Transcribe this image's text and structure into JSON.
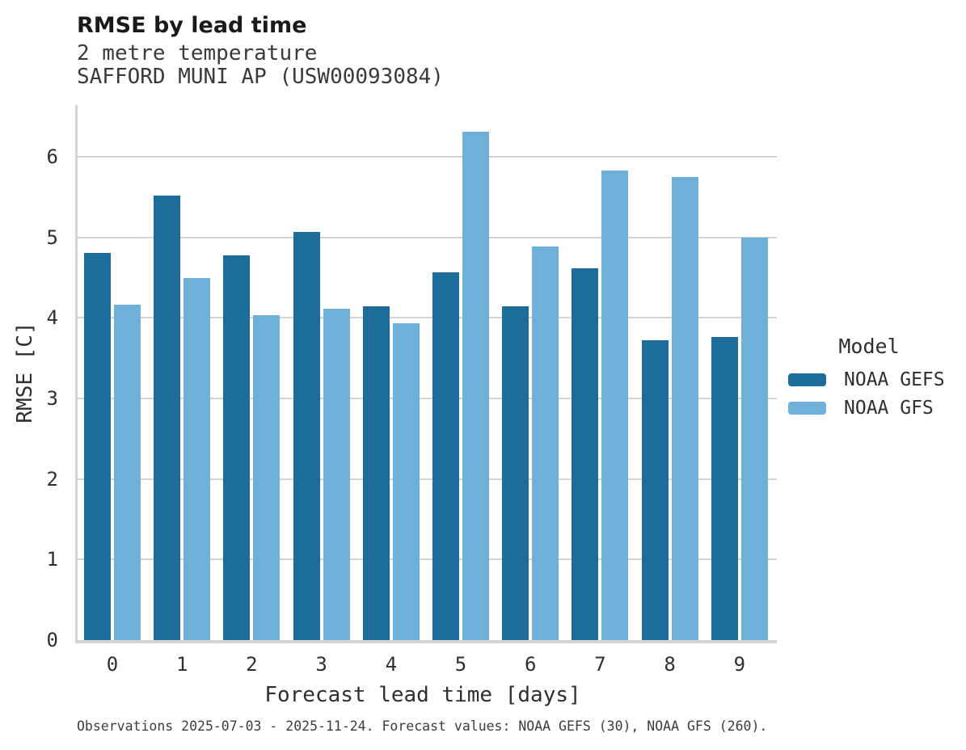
{
  "header": {
    "title": "RMSE by lead time",
    "subtitle1": "2 metre temperature",
    "subtitle2": "SAFFORD MUNI AP (USW00093084)"
  },
  "chart_data": {
    "type": "bar",
    "title": "RMSE by lead time",
    "subtitle": [
      "2 metre temperature",
      "SAFFORD MUNI AP (USW00093084)"
    ],
    "categories": [
      "0",
      "1",
      "2",
      "3",
      "4",
      "5",
      "6",
      "7",
      "8",
      "9"
    ],
    "series": [
      {
        "name": "NOAA GEFS",
        "color": "#1c6c9c",
        "values": [
          4.8,
          5.52,
          4.77,
          5.07,
          4.14,
          4.56,
          4.14,
          4.61,
          3.72,
          3.76
        ]
      },
      {
        "name": "NOAA GFS",
        "color": "#6db1d8",
        "values": [
          4.16,
          4.49,
          4.03,
          4.11,
          3.93,
          6.31,
          4.88,
          5.83,
          5.75,
          5.0
        ]
      }
    ],
    "xlabel": "Forecast lead time [days]",
    "ylabel": "RMSE [C]",
    "ylim": [
      0,
      6.64
    ],
    "yticks": [
      0,
      1,
      2,
      3,
      4,
      5,
      6
    ],
    "grid": "horizontal",
    "grid_color": "#d4d4d4",
    "legend_position": "right"
  },
  "legend": {
    "title": "Model"
  },
  "footer": {
    "note": "Observations 2025-07-03 - 2025-11-24. Forecast values: NOAA GEFS (30), NOAA GFS (260)."
  }
}
